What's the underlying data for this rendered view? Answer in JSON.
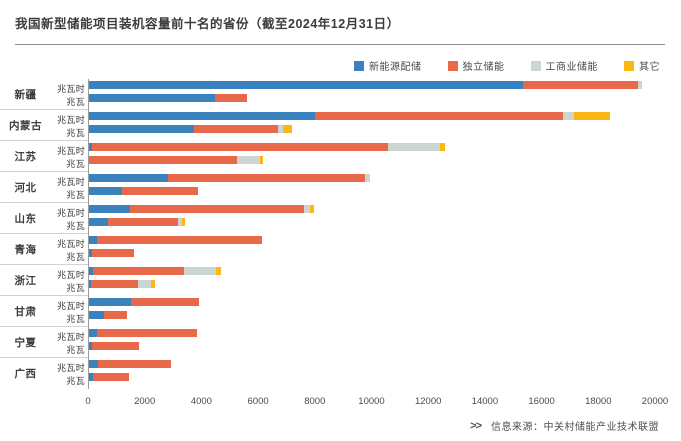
{
  "title": "我国新型储能项目装机容量前十名的省份（截至2024年12月31日）",
  "source": {
    "marker": ">>",
    "text": "信息来源：中关村储能产业技术联盟"
  },
  "legend": [
    {
      "label": "新能源配储",
      "color": "#3981bf"
    },
    {
      "label": "独立储能",
      "color": "#e8684a"
    },
    {
      "label": "工商业储能",
      "color": "#cbd6d1"
    },
    {
      "label": "其它",
      "color": "#fbb714"
    }
  ],
  "chart_data": {
    "type": "bar",
    "orientation": "horizontal",
    "stacked": true,
    "title": "我国新型储能项目装机容量前十名的省份（截至2024年12月31日）",
    "series_names": [
      "新能源配储",
      "独立储能",
      "工商业储能",
      "其它"
    ],
    "series_colors": [
      "#3981bf",
      "#e8684a",
      "#cbd6d1",
      "#fbb714"
    ],
    "unit_row_labels": [
      "兆瓦时",
      "兆瓦"
    ],
    "xlim": [
      0,
      20000
    ],
    "xticks": [
      0,
      2000,
      4000,
      6000,
      8000,
      10000,
      12000,
      14000,
      16000,
      18000,
      20000
    ],
    "grid": false,
    "legend_position": "top-right",
    "provinces": [
      {
        "name": "新疆",
        "mwh": [
          15350,
          4050,
          150,
          0
        ],
        "mw": [
          4450,
          1120,
          0,
          0
        ]
      },
      {
        "name": "内蒙古",
        "mwh": [
          8000,
          8750,
          400,
          1250
        ],
        "mw": [
          3700,
          2980,
          170,
          320
        ]
      },
      {
        "name": "江苏",
        "mwh": [
          120,
          10440,
          1830,
          190
        ],
        "mw": [
          0,
          5220,
          810,
          120
        ]
      },
      {
        "name": "河北",
        "mwh": [
          2800,
          6950,
          180,
          0
        ],
        "mw": [
          1150,
          2700,
          0,
          0
        ]
      },
      {
        "name": "山东",
        "mwh": [
          1450,
          6140,
          220,
          150
        ],
        "mw": [
          670,
          2480,
          150,
          100
        ]
      },
      {
        "name": "青海",
        "mwh": [
          300,
          5800,
          0,
          0
        ],
        "mw": [
          100,
          1500,
          0,
          0
        ]
      },
      {
        "name": "浙江",
        "mwh": [
          150,
          3200,
          1150,
          150
        ],
        "mw": [
          80,
          1650,
          450,
          150
        ]
      },
      {
        "name": "甘肃",
        "mwh": [
          1500,
          2400,
          0,
          0
        ],
        "mw": [
          520,
          830,
          0,
          0
        ]
      },
      {
        "name": "宁夏",
        "mwh": [
          300,
          3530,
          0,
          0
        ],
        "mw": [
          120,
          1650,
          0,
          0
        ]
      },
      {
        "name": "广西",
        "mwh": [
          330,
          2560,
          0,
          0
        ],
        "mw": [
          140,
          1270,
          0,
          0
        ]
      }
    ]
  }
}
